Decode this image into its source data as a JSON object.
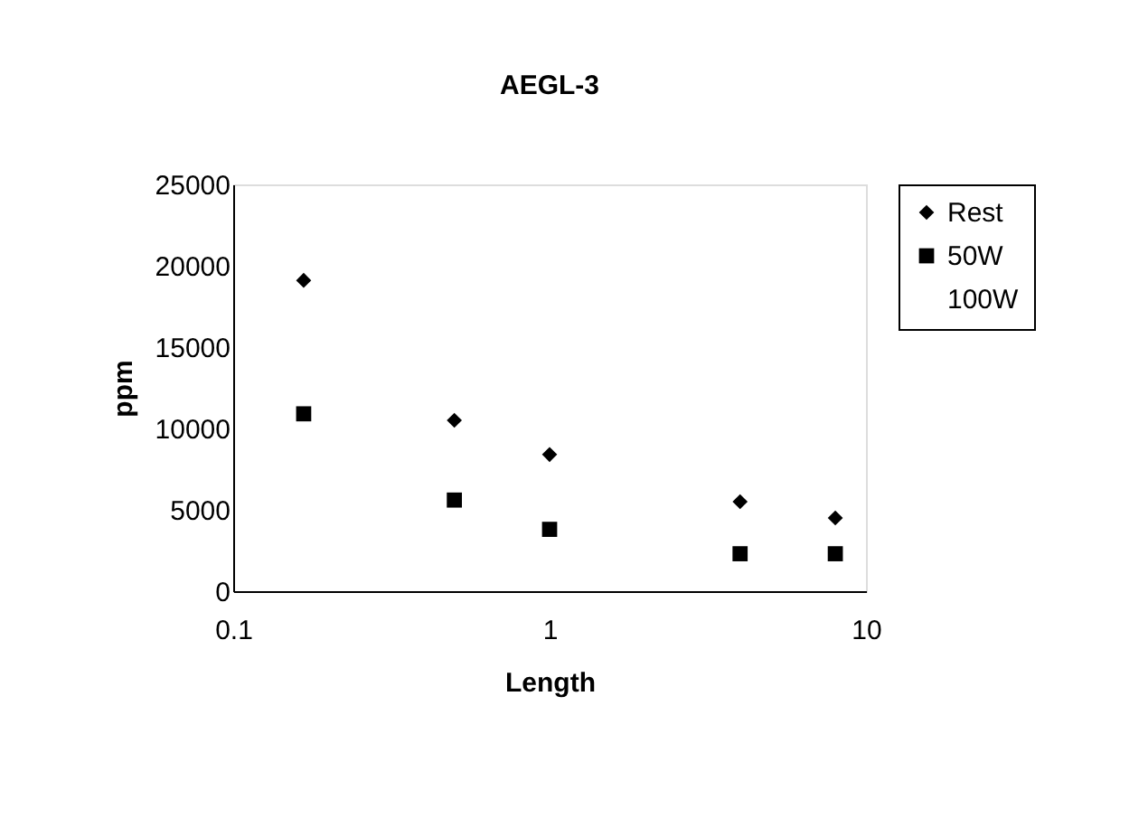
{
  "chart_data": {
    "type": "scatter",
    "title": "AEGL-3",
    "xlabel": "Length",
    "ylabel": "ppm",
    "x": [
      0.167,
      0.5,
      1,
      4,
      8
    ],
    "series": [
      {
        "name": "Rest",
        "color": "#000000",
        "marker": "diamond",
        "values": [
          19100,
          10500,
          8400,
          5500,
          4500
        ]
      },
      {
        "name": "50W",
        "color": "#000000",
        "marker": "square",
        "values": [
          10900,
          5600,
          3800,
          2300,
          2300
        ]
      },
      {
        "name": "100W",
        "marker": "none",
        "values": [
          null,
          null,
          null,
          null,
          null
        ]
      }
    ],
    "log": "x",
    "xlim": [
      0.1,
      10
    ],
    "xticks": [
      0.1,
      1,
      10
    ],
    "ylim": [
      0,
      25000
    ],
    "yticks": [
      0,
      5000,
      10000,
      15000,
      20000,
      25000
    ],
    "grid": false,
    "legend": "right"
  }
}
